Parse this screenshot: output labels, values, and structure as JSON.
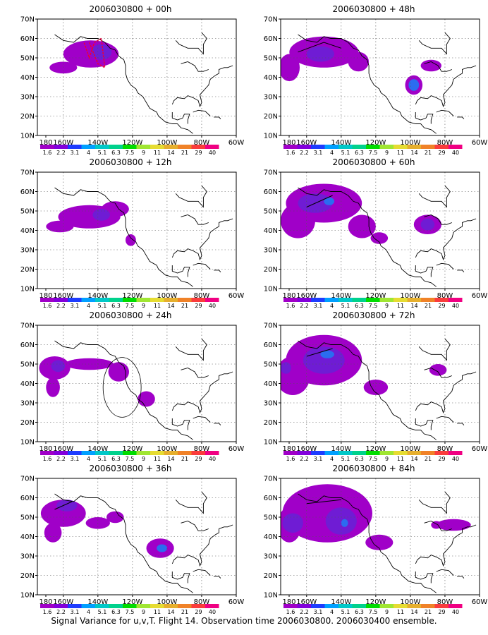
{
  "caption": "Signal Variance for u,v,T. Flight 14. Observation time 2006030800. 2006030400 ensemble.",
  "map": {
    "lon_ticks": [
      "180",
      "160W",
      "140W",
      "120W",
      "100W",
      "80W",
      "60W"
    ],
    "lat_ticks": [
      "10N",
      "20N",
      "30N",
      "40N",
      "50N",
      "60N",
      "70N"
    ],
    "lon_range": [
      -175,
      -60
    ],
    "lat_range": [
      10,
      70
    ],
    "grid": "dotted"
  },
  "colorbar": {
    "labels": [
      "1.6",
      "2.2",
      "3.1",
      "4",
      "5.1",
      "6.3",
      "7.5",
      "9",
      "11",
      "14",
      "21",
      "29",
      "40"
    ],
    "colors": [
      "#a000c8",
      "#8200dc",
      "#1e3cff",
      "#00a0ff",
      "#00c8c8",
      "#00d28c",
      "#00dc00",
      "#a0e632",
      "#e6dc32",
      "#e6af2d",
      "#f08228",
      "#fa3c3c",
      "#f00082"
    ]
  },
  "chart_data": [
    {
      "type": "heatmap",
      "title": "2006030800 + 00h",
      "xlabel": "",
      "ylabel": "",
      "xlim": [
        -175,
        -60
      ],
      "ylim": [
        10,
        70
      ],
      "blobs": [
        {
          "lon": -144,
          "lat": 52,
          "rx": 16,
          "ry": 7,
          "level": 1
        },
        {
          "lon": -160,
          "lat": 45,
          "rx": 8,
          "ry": 3,
          "level": 1
        },
        {
          "lon": -138,
          "lat": 53,
          "rx": 6,
          "ry": 4,
          "level": 2
        }
      ],
      "flight_track": [
        [
          -145,
          58
        ],
        [
          -140,
          47
        ],
        [
          -136,
          45
        ],
        [
          -138,
          60
        ],
        [
          -142,
          58
        ],
        [
          -145,
          50
        ],
        [
          -148,
          58
        ]
      ]
    },
    {
      "type": "heatmap",
      "title": "2006030800 + 12h",
      "xlabel": "",
      "ylabel": "",
      "xlim": [
        -175,
        -60
      ],
      "ylim": [
        10,
        70
      ],
      "blobs": [
        {
          "lon": -145,
          "lat": 47,
          "rx": 18,
          "ry": 6,
          "level": 1
        },
        {
          "lon": -162,
          "lat": 42,
          "rx": 8,
          "ry": 3,
          "level": 1
        },
        {
          "lon": -130,
          "lat": 51,
          "rx": 8,
          "ry": 4,
          "level": 1
        },
        {
          "lon": -121,
          "lat": 35,
          "rx": 3,
          "ry": 3,
          "level": 1
        },
        {
          "lon": -138,
          "lat": 48,
          "rx": 5,
          "ry": 3,
          "level": 2
        }
      ],
      "flight_track": []
    },
    {
      "type": "heatmap",
      "title": "2006030800 + 24h",
      "xlabel": "",
      "ylabel": "",
      "xlim": [
        -175,
        -60
      ],
      "ylim": [
        10,
        70
      ],
      "blobs": [
        {
          "lon": -165,
          "lat": 48,
          "rx": 9,
          "ry": 6,
          "level": 1
        },
        {
          "lon": -145,
          "lat": 50,
          "rx": 14,
          "ry": 3,
          "level": 1
        },
        {
          "lon": -128,
          "lat": 46,
          "rx": 6,
          "ry": 5,
          "level": 1
        },
        {
          "lon": -166,
          "lat": 38,
          "rx": 4,
          "ry": 5,
          "level": 1
        },
        {
          "lon": -112,
          "lat": 32,
          "rx": 5,
          "ry": 4,
          "level": 1
        },
        {
          "lon": -163,
          "lat": 49,
          "rx": 4,
          "ry": 3,
          "level": 2
        }
      ],
      "flight_track": [],
      "extra_circle": {
        "lon": -126,
        "lat": 38,
        "r": 11
      }
    },
    {
      "type": "heatmap",
      "title": "2006030800 + 36h",
      "xlabel": "",
      "ylabel": "",
      "xlim": [
        -175,
        -60
      ],
      "ylim": [
        10,
        70
      ],
      "blobs": [
        {
          "lon": -160,
          "lat": 52,
          "rx": 13,
          "ry": 7,
          "level": 1
        },
        {
          "lon": -166,
          "lat": 42,
          "rx": 5,
          "ry": 5,
          "level": 1
        },
        {
          "lon": -140,
          "lat": 47,
          "rx": 7,
          "ry": 3,
          "level": 1
        },
        {
          "lon": -104,
          "lat": 34,
          "rx": 8,
          "ry": 5,
          "level": 1
        },
        {
          "lon": -130,
          "lat": 50,
          "rx": 5,
          "ry": 3,
          "level": 1
        },
        {
          "lon": -158,
          "lat": 56,
          "rx": 6,
          "ry": 3,
          "level": 2
        },
        {
          "lon": -103,
          "lat": 34,
          "rx": 3,
          "ry": 2,
          "level": 3
        }
      ],
      "flight_track": [
        [
          -165,
          54
        ],
        [
          -155,
          58
        ]
      ]
    },
    {
      "type": "heatmap",
      "title": "2006030800 + 48h",
      "xlabel": "",
      "ylabel": "",
      "xlim": [
        -175,
        -60
      ],
      "ylim": [
        10,
        70
      ],
      "blobs": [
        {
          "lon": -150,
          "lat": 53,
          "rx": 20,
          "ry": 8,
          "level": 1
        },
        {
          "lon": -170,
          "lat": 45,
          "rx": 6,
          "ry": 7,
          "level": 1
        },
        {
          "lon": -130,
          "lat": 48,
          "rx": 6,
          "ry": 5,
          "level": 1
        },
        {
          "lon": -98,
          "lat": 36,
          "rx": 5,
          "ry": 5,
          "level": 1
        },
        {
          "lon": -88,
          "lat": 46,
          "rx": 6,
          "ry": 3,
          "level": 1
        },
        {
          "lon": -152,
          "lat": 52,
          "rx": 8,
          "ry": 4,
          "level": 2
        },
        {
          "lon": -98,
          "lat": 36,
          "rx": 3,
          "ry": 3,
          "level": 3
        }
      ],
      "flight_track": [
        [
          -165,
          53
        ],
        [
          -150,
          58
        ],
        [
          -140,
          55
        ]
      ]
    },
    {
      "type": "heatmap",
      "title": "2006030800 + 60h",
      "xlabel": "",
      "ylabel": "",
      "xlim": [
        -175,
        -60
      ],
      "ylim": [
        10,
        70
      ],
      "blobs": [
        {
          "lon": -150,
          "lat": 54,
          "rx": 22,
          "ry": 10,
          "level": 1
        },
        {
          "lon": -165,
          "lat": 45,
          "rx": 10,
          "ry": 9,
          "level": 1
        },
        {
          "lon": -128,
          "lat": 42,
          "rx": 8,
          "ry": 6,
          "level": 1
        },
        {
          "lon": -118,
          "lat": 36,
          "rx": 5,
          "ry": 3,
          "level": 1
        },
        {
          "lon": -90,
          "lat": 43,
          "rx": 8,
          "ry": 5,
          "level": 1
        },
        {
          "lon": -155,
          "lat": 54,
          "rx": 10,
          "ry": 5,
          "level": 2
        },
        {
          "lon": -147,
          "lat": 55,
          "rx": 3,
          "ry": 2,
          "level": 3
        },
        {
          "lon": -90,
          "lat": 43,
          "rx": 4,
          "ry": 3,
          "level": 2
        }
      ],
      "flight_track": [
        [
          -160,
          52
        ],
        [
          -145,
          58
        ]
      ]
    },
    {
      "type": "heatmap",
      "title": "2006030800 + 72h",
      "xlabel": "",
      "ylabel": "",
      "xlim": [
        -175,
        -60
      ],
      "ylim": [
        10,
        70
      ],
      "blobs": [
        {
          "lon": -150,
          "lat": 52,
          "rx": 22,
          "ry": 13,
          "level": 1
        },
        {
          "lon": -168,
          "lat": 44,
          "rx": 10,
          "ry": 10,
          "level": 1
        },
        {
          "lon": -120,
          "lat": 38,
          "rx": 7,
          "ry": 4,
          "level": 1
        },
        {
          "lon": -84,
          "lat": 47,
          "rx": 5,
          "ry": 3,
          "level": 1
        },
        {
          "lon": -150,
          "lat": 52,
          "rx": 12,
          "ry": 7,
          "level": 2
        },
        {
          "lon": -148,
          "lat": 55,
          "rx": 4,
          "ry": 2,
          "level": 3
        },
        {
          "lon": -172,
          "lat": 48,
          "rx": 3,
          "ry": 3,
          "level": 2
        }
      ],
      "flight_track": [
        [
          -160,
          54
        ],
        [
          -145,
          58
        ]
      ]
    },
    {
      "type": "heatmap",
      "title": "2006030800 + 84h",
      "xlabel": "",
      "ylabel": "",
      "xlim": [
        -175,
        -60
      ],
      "ylim": [
        10,
        70
      ],
      "blobs": [
        {
          "lon": -148,
          "lat": 52,
          "rx": 26,
          "ry": 15,
          "level": 1
        },
        {
          "lon": -170,
          "lat": 46,
          "rx": 7,
          "ry": 9,
          "level": 1
        },
        {
          "lon": -118,
          "lat": 37,
          "rx": 8,
          "ry": 4,
          "level": 1
        },
        {
          "lon": -75,
          "lat": 46,
          "rx": 10,
          "ry": 3,
          "level": 1
        },
        {
          "lon": -85,
          "lat": 46,
          "rx": 3,
          "ry": 2,
          "level": 1
        },
        {
          "lon": -168,
          "lat": 47,
          "rx": 6,
          "ry": 5,
          "level": 2
        },
        {
          "lon": -140,
          "lat": 48,
          "rx": 9,
          "ry": 7,
          "level": 2
        },
        {
          "lon": -138,
          "lat": 47,
          "rx": 2,
          "ry": 2,
          "level": 3
        }
      ],
      "flight_track": [
        [
          -160,
          57
        ],
        [
          -140,
          59
        ]
      ]
    }
  ]
}
